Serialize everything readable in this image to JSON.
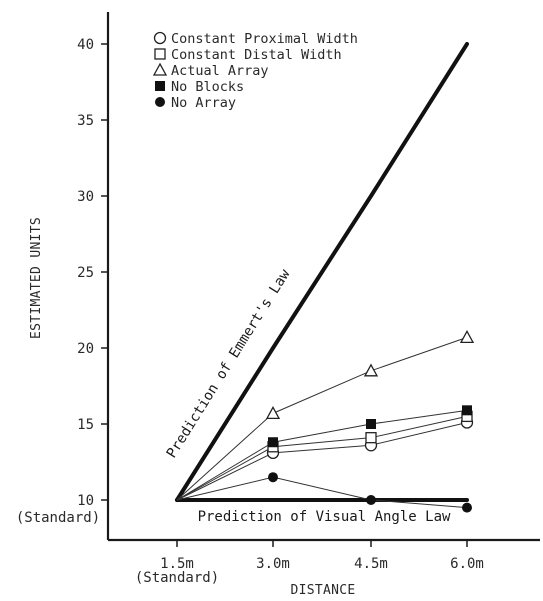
{
  "chart_data": {
    "type": "line",
    "xlabel": "DISTANCE",
    "ylabel": "ESTIMATED UNITS",
    "x_categories": [
      "1.5m",
      "3.0m",
      "4.5m",
      "6.0m"
    ],
    "x_standard_note": "(Standard)",
    "y_ticks": [
      "10",
      "15",
      "20",
      "25",
      "30",
      "35",
      "40"
    ],
    "y_standard_note": "(Standard)",
    "ylim": [
      5.5,
      42
    ],
    "legend_position": "top-left",
    "series": [
      {
        "name": "Constant Proximal Width",
        "marker": "circle-open",
        "values": [
          10,
          13.1,
          13.6,
          15.1
        ]
      },
      {
        "name": "Constant Distal Width",
        "marker": "square-open",
        "values": [
          10,
          13.5,
          14.1,
          15.5
        ]
      },
      {
        "name": "Actual Array",
        "marker": "triangle-open",
        "values": [
          10,
          15.7,
          18.5,
          20.7
        ]
      },
      {
        "name": "No Blocks",
        "marker": "square-filled",
        "values": [
          10,
          13.8,
          15.0,
          15.9
        ]
      },
      {
        "name": "No Array",
        "marker": "circle-filled",
        "values": [
          10,
          11.5,
          10,
          9.5
        ]
      }
    ],
    "reference_lines": [
      {
        "label": "Prediction of Emmert's Law",
        "values": [
          10,
          20,
          30,
          40
        ]
      },
      {
        "label": "Prediction of Visual Angle Law",
        "values": [
          10,
          10,
          10,
          10
        ]
      }
    ]
  }
}
